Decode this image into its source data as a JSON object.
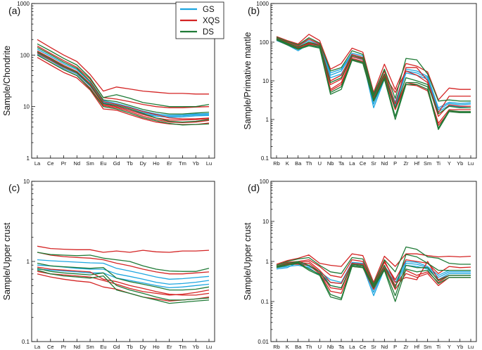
{
  "legend": [
    {
      "name": "GS",
      "color": "#1ea6e0"
    },
    {
      "name": "XQS",
      "color": "#d42424"
    },
    {
      "name": "DS",
      "color": "#1f7a36"
    }
  ],
  "chart_data": [
    {
      "type": "line",
      "panel_label": "(a)",
      "ylabel": "Sample/Chondrite",
      "yscale": "log",
      "ylim": [
        1,
        1000
      ],
      "yticks": [
        "1",
        "10",
        "100",
        "1000"
      ],
      "categories": [
        "La",
        "Ce",
        "Pr",
        "Nd",
        "Sm",
        "Eu",
        "Gd",
        "Tb",
        "Dy",
        "Ho",
        "Er",
        "Tm",
        "Yb",
        "Lu"
      ],
      "series": [
        {
          "group": "GS",
          "values": [
            130,
            95,
            68,
            52,
            30,
            13,
            11.5,
            9.8,
            8.2,
            7.2,
            6.8,
            6.9,
            7.2,
            7.3
          ]
        },
        {
          "group": "GS",
          "values": [
            115,
            85,
            60,
            46,
            27,
            12,
            10.5,
            9,
            7.6,
            6.8,
            6.5,
            6.6,
            6.9,
            7
          ]
        },
        {
          "group": "GS",
          "values": [
            105,
            78,
            55,
            43,
            25,
            11.5,
            10,
            8.5,
            7.2,
            6.5,
            6.2,
            6.3,
            6.6,
            6.7
          ]
        },
        {
          "group": "XQS",
          "values": [
            200,
            140,
            100,
            75,
            42,
            20,
            24,
            22,
            20,
            19,
            18,
            18,
            17.5,
            17.5
          ]
        },
        {
          "group": "XQS",
          "values": [
            150,
            108,
            78,
            58,
            34,
            15,
            14,
            12.5,
            11,
            10,
            9.5,
            9.5,
            9.8,
            10
          ]
        },
        {
          "group": "XQS",
          "values": [
            120,
            88,
            63,
            48,
            28,
            12.5,
            11,
            9.5,
            8,
            7,
            6,
            5.8,
            5.8,
            6
          ]
        },
        {
          "group": "XQS",
          "values": [
            100,
            72,
            52,
            40,
            23,
            10.5,
            9.5,
            8,
            6.5,
            5.6,
            5,
            4.9,
            5,
            5.4
          ]
        },
        {
          "group": "XQS",
          "values": [
            90,
            64,
            46,
            36,
            21,
            9,
            8.5,
            7,
            5.8,
            5,
            4.6,
            4.5,
            4.5,
            4.8
          ]
        },
        {
          "group": "XQS",
          "values": [
            110,
            80,
            58,
            45,
            26,
            11,
            10,
            8.5,
            7,
            6,
            5.5,
            5.5,
            5.6,
            5.8
          ]
        },
        {
          "group": "DS",
          "values": [
            165,
            120,
            86,
            64,
            36,
            15,
            17,
            14.5,
            12,
            11,
            10,
            10,
            10,
            11
          ]
        },
        {
          "group": "DS",
          "values": [
            140,
            102,
            73,
            55,
            31,
            13.5,
            12.5,
            10.5,
            8.8,
            7.8,
            7.2,
            7.2,
            7.5,
            7.8
          ]
        },
        {
          "group": "DS",
          "values": [
            115,
            84,
            60,
            46,
            26,
            11.5,
            10.5,
            9,
            7.4,
            6,
            5.2,
            5,
            5.2,
            5.6
          ]
        },
        {
          "group": "DS",
          "values": [
            100,
            73,
            52,
            40,
            22,
            10,
            9,
            7.5,
            6.1,
            5.3,
            4.7,
            4.4,
            4.5,
            4.6
          ]
        }
      ]
    },
    {
      "type": "line",
      "panel_label": "(b)",
      "ylabel": "Sample/Primative mantle",
      "yscale": "log",
      "ylim": [
        0.1,
        1000
      ],
      "yticks": [
        "0.1",
        "1",
        "10",
        "100",
        "1000"
      ],
      "categories": [
        "Rb",
        "K",
        "Ba",
        "Th",
        "U",
        "Nb",
        "Ta",
        "La",
        "Ce",
        "Sr",
        "Nd",
        "P",
        "Zr",
        "Hf",
        "Sm",
        "Ti",
        "Y",
        "Yb",
        "Lu"
      ],
      "series": [
        {
          "group": "GS",
          "values": [
            120,
            95,
            70,
            100,
            80,
            14,
            18,
            48,
            40,
            2.5,
            12,
            2.5,
            18,
            16,
            12,
            1.8,
            2.6,
            2.4,
            2.5
          ]
        },
        {
          "group": "GS",
          "values": [
            110,
            85,
            60,
            90,
            70,
            12,
            15,
            42,
            35,
            2,
            11,
            2.2,
            16,
            14,
            11,
            1.6,
            2.3,
            2.1,
            2.2
          ]
        },
        {
          "group": "GS",
          "values": [
            130,
            100,
            80,
            110,
            85,
            16,
            20,
            52,
            44,
            3,
            13,
            2.8,
            20,
            18,
            13,
            2,
            2.8,
            2.6,
            2.7
          ]
        },
        {
          "group": "XQS",
          "values": [
            140,
            110,
            90,
            160,
            110,
            20,
            28,
            70,
            55,
            5,
            27,
            6,
            28,
            24,
            17,
            3.2,
            6.5,
            6,
            6
          ]
        },
        {
          "group": "XQS",
          "values": [
            130,
            100,
            80,
            120,
            90,
            10,
            14,
            48,
            40,
            4,
            18,
            2.5,
            22,
            22,
            10,
            1.5,
            4,
            4,
            4
          ]
        },
        {
          "group": "XQS",
          "values": [
            120,
            90,
            75,
            100,
            85,
            6,
            9,
            38,
            32,
            3.5,
            13,
            2,
            9,
            8,
            6,
            0.8,
            1.8,
            1.8,
            1.8
          ]
        },
        {
          "group": "XQS",
          "values": [
            115,
            85,
            70,
            95,
            80,
            5.5,
            8,
            35,
            30,
            3,
            12,
            1.8,
            8,
            7.5,
            5.5,
            0.7,
            1.6,
            1.6,
            1.6
          ]
        },
        {
          "group": "XQS",
          "values": [
            125,
            95,
            72,
            90,
            75,
            8,
            11,
            42,
            36,
            3.8,
            14,
            5,
            18,
            14,
            9,
            1.2,
            2.4,
            2.2,
            2.2
          ]
        },
        {
          "group": "DS",
          "values": [
            135,
            105,
            85,
            130,
            95,
            18,
            22,
            60,
            48,
            4.5,
            20,
            3.5,
            38,
            35,
            15,
            3,
            3.2,
            3,
            3
          ]
        },
        {
          "group": "DS",
          "values": [
            125,
            95,
            75,
            100,
            80,
            9,
            12,
            45,
            38,
            4,
            15,
            2,
            12,
            10,
            8,
            1.4,
            2.2,
            2,
            2
          ]
        },
        {
          "group": "DS",
          "values": [
            115,
            85,
            65,
            80,
            70,
            4.5,
            6,
            34,
            28,
            3,
            11,
            1,
            8,
            8,
            6,
            0.55,
            1.6,
            1.5,
            1.5
          ]
        },
        {
          "group": "DS",
          "values": [
            120,
            90,
            68,
            85,
            75,
            5,
            7,
            36,
            30,
            3.3,
            12,
            1.2,
            9,
            9,
            7,
            0.6,
            1.7,
            1.6,
            1.6
          ]
        }
      ]
    },
    {
      "type": "line",
      "panel_label": "(c)",
      "ylabel": "Sample/Upper crust",
      "yscale": "log",
      "ylim": [
        0.1,
        10
      ],
      "yticks": [
        "0.1",
        "1",
        "10"
      ],
      "categories": [
        "La",
        "Ce",
        "Pr",
        "Nd",
        "Sm",
        "Eu",
        "Gd",
        "Tb",
        "Dy",
        "Ho",
        "Er",
        "Tm",
        "Yb",
        "Lu"
      ],
      "series": [
        {
          "group": "GS",
          "values": [
            0.9,
            0.88,
            0.85,
            0.82,
            0.8,
            0.8,
            0.7,
            0.65,
            0.6,
            0.55,
            0.52,
            0.53,
            0.55,
            0.58
          ]
        },
        {
          "group": "GS",
          "values": [
            0.8,
            0.78,
            0.76,
            0.74,
            0.72,
            0.72,
            0.62,
            0.58,
            0.54,
            0.5,
            0.47,
            0.48,
            0.5,
            0.52
          ]
        },
        {
          "group": "GS",
          "values": [
            1.05,
            1.02,
            1.0,
            0.98,
            0.96,
            0.95,
            0.82,
            0.76,
            0.7,
            0.64,
            0.6,
            0.61,
            0.63,
            0.65
          ]
        },
        {
          "group": "XQS",
          "values": [
            1.55,
            1.45,
            1.42,
            1.4,
            1.4,
            1.3,
            1.35,
            1.3,
            1.38,
            1.32,
            1.3,
            1.35,
            1.35,
            1.38
          ]
        },
        {
          "group": "XQS",
          "values": [
            1.3,
            1.2,
            1.15,
            1.12,
            1.1,
            1.05,
            0.95,
            0.88,
            0.8,
            0.74,
            0.7,
            0.7,
            0.72,
            0.74
          ]
        },
        {
          "group": "XQS",
          "values": [
            0.85,
            0.8,
            0.78,
            0.76,
            0.74,
            0.6,
            0.56,
            0.5,
            0.46,
            0.42,
            0.39,
            0.38,
            0.38,
            0.4
          ]
        },
        {
          "group": "XQS",
          "values": [
            0.7,
            0.64,
            0.6,
            0.57,
            0.55,
            0.48,
            0.45,
            0.4,
            0.36,
            0.34,
            0.32,
            0.33,
            0.34,
            0.36
          ]
        },
        {
          "group": "XQS",
          "values": [
            0.75,
            0.7,
            0.68,
            0.66,
            0.64,
            0.58,
            0.52,
            0.46,
            0.42,
            0.4,
            0.38,
            0.39,
            0.41,
            0.44
          ]
        },
        {
          "group": "DS",
          "values": [
            1.3,
            1.22,
            1.2,
            1.18,
            1.2,
            1.1,
            1.05,
            1.0,
            0.88,
            0.8,
            0.76,
            0.75,
            0.75,
            0.82
          ]
        },
        {
          "group": "DS",
          "values": [
            0.95,
            0.88,
            0.86,
            0.84,
            0.82,
            0.84,
            0.62,
            0.56,
            0.52,
            0.48,
            0.44,
            0.44,
            0.45,
            0.48
          ]
        },
        {
          "group": "DS",
          "values": [
            0.82,
            0.75,
            0.72,
            0.7,
            0.68,
            0.72,
            0.5,
            0.44,
            0.4,
            0.36,
            0.33,
            0.33,
            0.34,
            0.35
          ]
        },
        {
          "group": "DS",
          "values": [
            0.78,
            0.7,
            0.66,
            0.64,
            0.62,
            0.66,
            0.44,
            0.4,
            0.36,
            0.33,
            0.3,
            0.31,
            0.32,
            0.33
          ]
        }
      ]
    },
    {
      "type": "line",
      "panel_label": "(d)",
      "ylabel": "Sample/Upper crust",
      "yscale": "log",
      "ylim": [
        0.01,
        100
      ],
      "yticks": [
        "0.01",
        "0.1",
        "1",
        "10",
        "100"
      ],
      "categories": [
        "Rb",
        "K",
        "Ba",
        "Th",
        "U",
        "Nb",
        "Ta",
        "La",
        "Ce",
        "Sr",
        "Nd",
        "P",
        "Zr",
        "Hf",
        "Sm",
        "Ti",
        "Y",
        "Yb",
        "Lu"
      ],
      "series": [
        {
          "group": "GS",
          "values": [
            0.75,
            0.85,
            0.85,
            0.8,
            0.5,
            0.3,
            0.28,
            0.9,
            0.85,
            0.17,
            0.7,
            0.3,
            0.9,
            0.85,
            0.7,
            0.4,
            0.55,
            0.55,
            0.55
          ]
        },
        {
          "group": "GS",
          "values": [
            0.7,
            0.75,
            0.8,
            0.7,
            0.45,
            0.25,
            0.22,
            0.8,
            0.75,
            0.14,
            0.65,
            0.25,
            0.8,
            0.75,
            0.65,
            0.35,
            0.5,
            0.5,
            0.5
          ]
        },
        {
          "group": "GS",
          "values": [
            0.65,
            0.7,
            0.95,
            0.75,
            0.55,
            0.35,
            0.3,
            0.95,
            0.9,
            0.2,
            0.75,
            0.35,
            1.0,
            0.95,
            0.75,
            0.45,
            0.6,
            0.6,
            0.6
          ]
        },
        {
          "group": "XQS",
          "values": [
            0.85,
            1.05,
            1.2,
            1.45,
            0.9,
            0.8,
            0.75,
            1.55,
            1.4,
            0.3,
            1.35,
            0.75,
            1.55,
            1.55,
            1.4,
            1.3,
            1.35,
            1.3,
            1.35
          ]
        },
        {
          "group": "XQS",
          "values": [
            0.8,
            0.95,
            1.0,
            1.1,
            0.75,
            0.45,
            0.4,
            1.1,
            1.0,
            0.25,
            0.95,
            0.35,
            1.1,
            1.0,
            0.9,
            0.5,
            0.75,
            0.7,
            0.72
          ]
        },
        {
          "group": "XQS",
          "values": [
            0.75,
            0.9,
            0.9,
            0.9,
            0.55,
            0.22,
            0.2,
            0.85,
            0.8,
            0.22,
            0.8,
            0.25,
            0.6,
            0.45,
            0.55,
            0.3,
            0.45,
            0.45,
            0.45
          ]
        },
        {
          "group": "XQS",
          "values": [
            0.7,
            0.85,
            0.85,
            0.8,
            0.5,
            0.18,
            0.16,
            0.75,
            0.7,
            0.2,
            0.7,
            0.2,
            0.5,
            0.4,
            0.5,
            0.25,
            0.4,
            0.4,
            0.4
          ]
        },
        {
          "group": "XQS",
          "values": [
            0.72,
            0.88,
            0.95,
            1.0,
            0.6,
            0.3,
            0.28,
            0.9,
            0.85,
            0.24,
            1.05,
            0.3,
            0.4,
            0.35,
            1.0,
            0.35,
            0.45,
            0.45,
            0.45
          ]
        },
        {
          "group": "DS",
          "values": [
            0.8,
            1.0,
            1.15,
            1.25,
            0.8,
            0.55,
            0.5,
            1.25,
            1.15,
            0.27,
            1.1,
            0.55,
            2.3,
            2.0,
            1.3,
            1.2,
            0.9,
            0.85,
            0.85
          ]
        },
        {
          "group": "DS",
          "values": [
            0.75,
            0.9,
            1.0,
            0.8,
            0.55,
            0.25,
            0.22,
            0.85,
            0.8,
            0.24,
            0.8,
            0.22,
            1.5,
            1.3,
            0.9,
            0.6,
            0.6,
            0.6,
            0.6
          ]
        },
        {
          "group": "DS",
          "values": [
            0.7,
            0.8,
            0.9,
            0.6,
            0.45,
            0.13,
            0.11,
            0.75,
            0.7,
            0.22,
            0.6,
            0.1,
            0.65,
            0.55,
            0.6,
            0.28,
            0.4,
            0.4,
            0.4
          ]
        },
        {
          "group": "DS",
          "values": [
            0.72,
            0.82,
            0.95,
            0.65,
            0.48,
            0.15,
            0.12,
            0.8,
            0.75,
            0.23,
            0.65,
            0.14,
            0.8,
            0.7,
            0.7,
            0.33,
            0.45,
            0.45,
            0.45
          ]
        }
      ]
    }
  ]
}
